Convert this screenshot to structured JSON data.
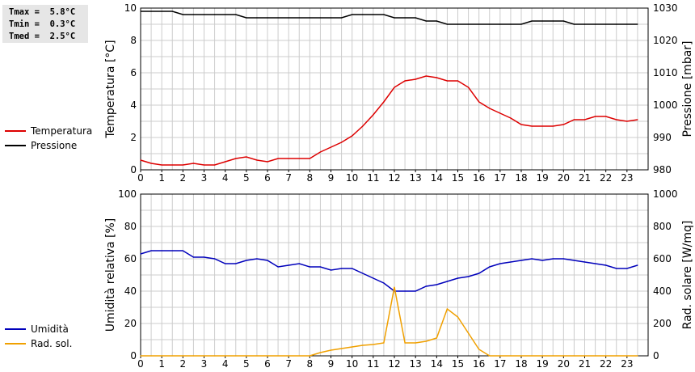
{
  "stats": {
    "tmax": "Tmax =  5.8°C",
    "tmin": "Tmin =  0.3°C",
    "tmed": "Tmed =  2.5°C"
  },
  "colors": {
    "temperature": "#dd0000",
    "pressure": "#000000",
    "humidity": "#0000bb",
    "radiation": "#f0a000",
    "grid": "#cccccc"
  },
  "chart_data": [
    {
      "type": "line",
      "xlim": [
        0,
        24
      ],
      "x_ticks": [
        "0",
        "1",
        "2",
        "3",
        "4",
        "5",
        "6",
        "7",
        "8",
        "9",
        "10",
        "11",
        "12",
        "13",
        "14",
        "15",
        "16",
        "17",
        "18",
        "19",
        "20",
        "21",
        "22",
        "23"
      ],
      "y_left": {
        "label": "Temperatura [°C]",
        "lim": [
          0,
          10
        ],
        "ticks": [
          "0",
          "2",
          "4",
          "6",
          "8",
          "10"
        ]
      },
      "y_right": {
        "label": "Pressione [mbar]",
        "lim": [
          980,
          1030
        ],
        "ticks": [
          "980",
          "990",
          "1000",
          "1010",
          "1020",
          "1030"
        ]
      },
      "grid": true,
      "legend": [
        "Temperatura",
        "Pressione"
      ],
      "series": [
        {
          "name": "Temperatura",
          "axis": "left",
          "x": [
            0,
            0.5,
            1,
            1.5,
            2,
            2.5,
            3,
            3.5,
            4,
            4.5,
            5,
            5.5,
            6,
            6.5,
            7,
            7.5,
            8,
            8.5,
            9,
            9.5,
            10,
            10.5,
            11,
            11.5,
            12,
            12.5,
            13,
            13.5,
            14,
            14.5,
            15,
            15.5,
            16,
            16.5,
            17,
            17.5,
            18,
            18.5,
            19,
            19.5,
            20,
            20.5,
            21,
            21.5,
            22,
            22.5,
            23,
            23.5
          ],
          "y": [
            0.6,
            0.4,
            0.3,
            0.3,
            0.3,
            0.4,
            0.3,
            0.3,
            0.5,
            0.7,
            0.8,
            0.6,
            0.5,
            0.7,
            0.7,
            0.7,
            0.7,
            1.1,
            1.4,
            1.7,
            2.1,
            2.7,
            3.4,
            4.2,
            5.1,
            5.5,
            5.6,
            5.8,
            5.7,
            5.5,
            5.5,
            5.1,
            4.2,
            3.8,
            3.5,
            3.2,
            2.8,
            2.7,
            2.7,
            2.7,
            2.8,
            3.1,
            3.1,
            3.3,
            3.3,
            3.1,
            3.0,
            3.1
          ]
        },
        {
          "name": "Pressione",
          "axis": "right",
          "x": [
            0,
            0.5,
            1,
            1.5,
            2,
            2.5,
            3,
            3.5,
            4,
            4.5,
            5,
            5.5,
            6,
            6.5,
            7,
            7.5,
            8,
            8.5,
            9,
            9.5,
            10,
            10.5,
            11,
            11.5,
            12,
            12.5,
            13,
            13.5,
            14,
            14.5,
            15,
            15.5,
            16,
            16.5,
            17,
            17.5,
            18,
            18.5,
            19,
            19.5,
            20,
            20.5,
            21,
            21.5,
            22,
            22.5,
            23,
            23.5
          ],
          "y": [
            1029,
            1029,
            1029,
            1029,
            1028,
            1028,
            1028,
            1028,
            1028,
            1028,
            1027,
            1027,
            1027,
            1027,
            1027,
            1027,
            1027,
            1027,
            1027,
            1027,
            1028,
            1028,
            1028,
            1028,
            1027,
            1027,
            1027,
            1026,
            1026,
            1025,
            1025,
            1025,
            1025,
            1025,
            1025,
            1025,
            1025,
            1026,
            1026,
            1026,
            1026,
            1025,
            1025,
            1025,
            1025,
            1025,
            1025,
            1025
          ]
        }
      ]
    },
    {
      "type": "line",
      "xlim": [
        0,
        24
      ],
      "x_ticks": [
        "0",
        "1",
        "2",
        "3",
        "4",
        "5",
        "6",
        "7",
        "8",
        "9",
        "10",
        "11",
        "12",
        "13",
        "14",
        "15",
        "16",
        "17",
        "18",
        "19",
        "20",
        "21",
        "22",
        "23"
      ],
      "y_left": {
        "label": "Umidità relativa [%]",
        "lim": [
          0,
          100
        ],
        "ticks": [
          "0",
          "20",
          "40",
          "60",
          "80",
          "100"
        ]
      },
      "y_right": {
        "label": "Rad. solare [W/mq]",
        "lim": [
          0,
          1000
        ],
        "ticks": [
          "0",
          "200",
          "400",
          "600",
          "800",
          "1000"
        ]
      },
      "grid": true,
      "legend": [
        "Umidità",
        "Rad. sol."
      ],
      "series": [
        {
          "name": "Umidità",
          "axis": "left",
          "x": [
            0,
            0.5,
            1,
            1.5,
            2,
            2.5,
            3,
            3.5,
            4,
            4.5,
            5,
            5.5,
            6,
            6.5,
            7,
            7.5,
            8,
            8.5,
            9,
            9.5,
            10,
            10.5,
            11,
            11.5,
            12,
            12.5,
            13,
            13.5,
            14,
            14.5,
            15,
            15.5,
            16,
            16.5,
            17,
            17.5,
            18,
            18.5,
            19,
            19.5,
            20,
            20.5,
            21,
            21.5,
            22,
            22.5,
            23,
            23.5
          ],
          "y": [
            63,
            65,
            65,
            65,
            65,
            61,
            61,
            60,
            57,
            57,
            59,
            60,
            59,
            55,
            56,
            57,
            55,
            55,
            53,
            54,
            54,
            51,
            48,
            45,
            40,
            40,
            40,
            43,
            44,
            46,
            48,
            49,
            51,
            55,
            57,
            58,
            59,
            60,
            59,
            60,
            60,
            59,
            58,
            57,
            56,
            54,
            54,
            56
          ]
        },
        {
          "name": "Rad. sol.",
          "axis": "right",
          "x": [
            0,
            0.5,
            1,
            1.5,
            2,
            2.5,
            3,
            3.5,
            4,
            4.5,
            5,
            5.5,
            6,
            6.5,
            7,
            7.5,
            8,
            8.5,
            9,
            9.5,
            10,
            10.5,
            11,
            11.5,
            12,
            12.5,
            13,
            13.5,
            14,
            14.5,
            15,
            15.5,
            16,
            16.5,
            17,
            17.5,
            18,
            18.5,
            19,
            19.5,
            20,
            20.5,
            21,
            21.5,
            22,
            22.5,
            23,
            23.5
          ],
          "y": [
            0,
            0,
            0,
            0,
            0,
            0,
            0,
            0,
            0,
            0,
            0,
            0,
            0,
            0,
            0,
            0,
            0,
            20,
            35,
            45,
            55,
            65,
            70,
            80,
            425,
            80,
            80,
            90,
            110,
            290,
            240,
            140,
            40,
            0,
            0,
            0,
            0,
            0,
            0,
            0,
            0,
            0,
            0,
            0,
            0,
            0,
            0,
            0
          ]
        }
      ]
    }
  ]
}
